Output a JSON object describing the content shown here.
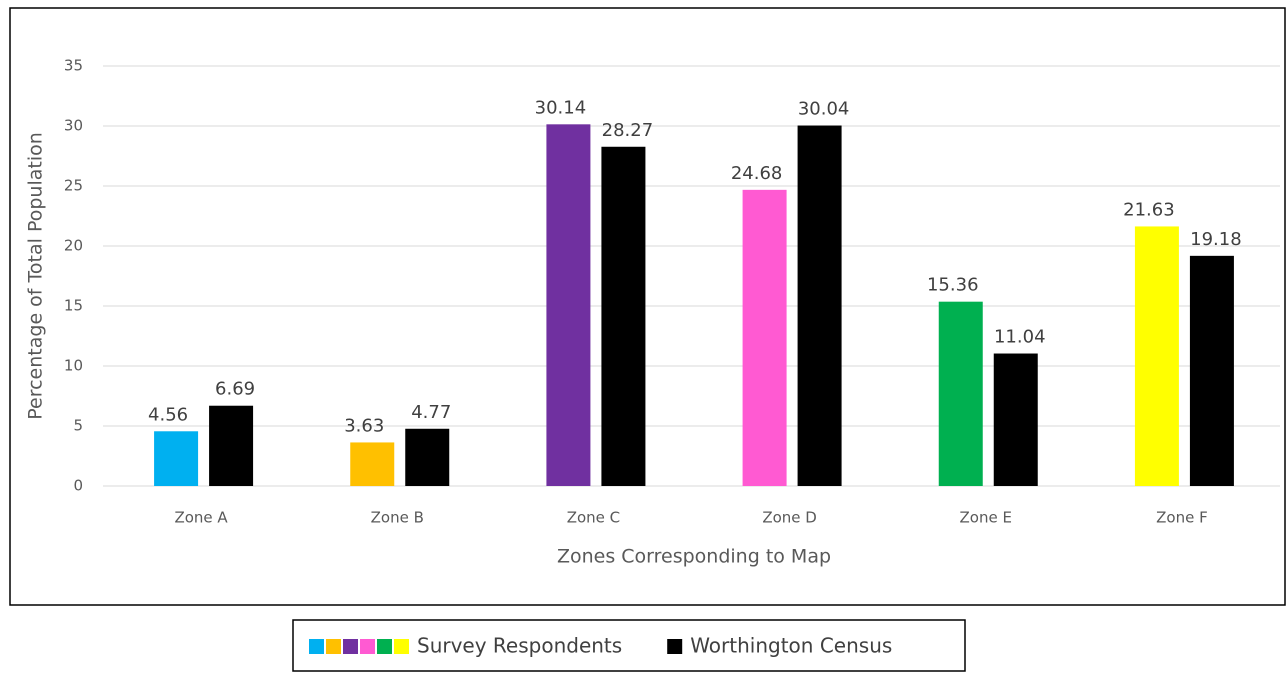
{
  "chart_data": {
    "type": "bar",
    "x_label": "Zones Corresponding to Map",
    "y_label": "Percentage of Total Population",
    "categories": [
      "Zone A",
      "Zone B",
      "Zone C",
      "Zone D",
      "Zone E",
      "Zone F"
    ],
    "series": [
      {
        "name": "Survey Respondents",
        "colors": [
          "#00b0f0",
          "#ffc000",
          "#7030a0",
          "#ff5ad2",
          "#00b050",
          "#ffff00"
        ],
        "values": [
          4.56,
          3.63,
          30.14,
          24.68,
          15.36,
          21.63
        ]
      },
      {
        "name": "Worthington Census",
        "color": "#000000",
        "values": [
          6.69,
          4.77,
          28.27,
          30.04,
          11.04,
          19.18
        ]
      }
    ],
    "ylim": [
      0,
      35
    ],
    "yticks": [
      0,
      5,
      10,
      15,
      20,
      25,
      30,
      35
    ],
    "grid": true,
    "legend": "bottom"
  }
}
